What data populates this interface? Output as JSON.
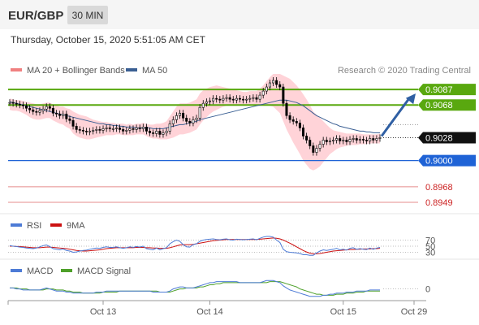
{
  "header": {
    "symbol": "EUR/GBP",
    "timeframe": "30 MIN",
    "timestamp": "Thursday, October 15, 2020 5:51:05 AM CET"
  },
  "colors": {
    "candle_up": "#ffffff",
    "candle_down": "#000000",
    "bollinger_fill": "#ffd3d8",
    "ma20": "#f08080",
    "ma50": "#3a5f93",
    "resistance": "#59a80f",
    "support": "#1f63d6",
    "minor_line": "#e58c8c",
    "last_price_bg": "#111111",
    "arrow": "#2f5fa3",
    "rsi_line": "#4d7bd6",
    "rsi_ma": "#cc1111",
    "macd_line": "#4d7bd6",
    "macd_signal": "#4ea02a"
  },
  "chart_data": [
    {
      "type": "candlestick",
      "legend": [
        {
          "name": "MA 20 + Bollinger Bands",
          "swatch": "ma20"
        },
        {
          "name": "MA 50",
          "swatch": "ma50"
        }
      ],
      "credit": "Research © 2020 Trading Central",
      "x_tick_labels": [
        "Oct 13",
        "Oct 14",
        "Oct 15",
        "Oct 29"
      ],
      "ylim": [
        0.894,
        0.91
      ],
      "last_price": 0.9028,
      "levels": [
        {
          "value": 0.9087,
          "label": "0.9087",
          "kind": "resistance"
        },
        {
          "value": 0.9068,
          "label": "0.9068",
          "kind": "resistance"
        },
        {
          "value": 0.9,
          "label": "0.9000",
          "kind": "support"
        },
        {
          "value": 0.8968,
          "label": "0.8968",
          "kind": "minor"
        },
        {
          "value": 0.8949,
          "label": "0.8949",
          "kind": "minor"
        }
      ],
      "last_price_label": "0.9028",
      "forecast_arrow": {
        "from": 0.9028,
        "to": 0.9082
      },
      "close": [
        0.9071,
        0.907,
        0.9069,
        0.9068,
        0.9067,
        0.9064,
        0.9062,
        0.906,
        0.9059,
        0.9061,
        0.9063,
        0.9066,
        0.9064,
        0.9058,
        0.9057,
        0.9055,
        0.9057,
        0.9051,
        0.9049,
        0.9042,
        0.9038,
        0.9037,
        0.9036,
        0.9035,
        0.9036,
        0.9037,
        0.9038,
        0.9037,
        0.9039,
        0.904,
        0.9039,
        0.9039,
        0.904,
        0.9038,
        0.9036,
        0.9037,
        0.9039,
        0.9038,
        0.904,
        0.9039,
        0.9041,
        0.9036,
        0.9034,
        0.9033,
        0.9036,
        0.9032,
        0.9034,
        0.9036,
        0.9045,
        0.905,
        0.9055,
        0.9058,
        0.9052,
        0.9048,
        0.9046,
        0.905,
        0.9052,
        0.9065,
        0.907,
        0.9072,
        0.9073,
        0.9076,
        0.9075,
        0.9074,
        0.9076,
        0.9077,
        0.9075,
        0.9074,
        0.9076,
        0.9075,
        0.9074,
        0.9075,
        0.9076,
        0.9077,
        0.9075,
        0.908,
        0.9085,
        0.909,
        0.9095,
        0.9098,
        0.9093,
        0.909,
        0.907,
        0.9055,
        0.905,
        0.9048,
        0.9046,
        0.904,
        0.903,
        0.9025,
        0.9018,
        0.901,
        0.9015,
        0.902,
        0.9025,
        0.9023,
        0.9024,
        0.9025,
        0.9027,
        0.9024,
        0.9025,
        0.9023,
        0.9026,
        0.9027,
        0.9025,
        0.9026,
        0.9025,
        0.9024,
        0.9027,
        0.9025,
        0.9027,
        0.9028
      ],
      "bb_upper": [
        0.9076,
        0.9075,
        0.9074,
        0.9074,
        0.9073,
        0.9072,
        0.9071,
        0.907,
        0.9069,
        0.9069,
        0.907,
        0.9071,
        0.9071,
        0.9069,
        0.9068,
        0.9066,
        0.9066,
        0.9064,
        0.9063,
        0.906,
        0.9058,
        0.9056,
        0.9055,
        0.9054,
        0.9052,
        0.905,
        0.9049,
        0.9048,
        0.9047,
        0.9047,
        0.9046,
        0.9046,
        0.9045,
        0.9045,
        0.9045,
        0.9044,
        0.9045,
        0.9044,
        0.9045,
        0.9045,
        0.9046,
        0.9045,
        0.9044,
        0.9044,
        0.9045,
        0.9045,
        0.9046,
        0.9048,
        0.9054,
        0.906,
        0.9066,
        0.907,
        0.907,
        0.907,
        0.9071,
        0.9073,
        0.9075,
        0.9082,
        0.9086,
        0.9088,
        0.909,
        0.9091,
        0.9092,
        0.9091,
        0.909,
        0.9089,
        0.9088,
        0.9087,
        0.9086,
        0.9085,
        0.9084,
        0.9084,
        0.9085,
        0.9085,
        0.9085,
        0.9088,
        0.9092,
        0.9097,
        0.9102,
        0.9106,
        0.9106,
        0.9106,
        0.9104,
        0.9102,
        0.91,
        0.9096,
        0.9092,
        0.9087,
        0.9081,
        0.9075,
        0.9068,
        0.906,
        0.9056,
        0.9052,
        0.9048,
        0.9044,
        0.904,
        0.9037,
        0.9036,
        0.9035,
        0.9034,
        0.9033,
        0.9033,
        0.9033,
        0.9033,
        0.9033,
        0.9032,
        0.9032,
        0.9032,
        0.9032,
        0.9032,
        0.9033
      ],
      "bb_lower": [
        0.9062,
        0.9061,
        0.9061,
        0.906,
        0.9058,
        0.9056,
        0.9053,
        0.9051,
        0.905,
        0.905,
        0.9051,
        0.9052,
        0.9052,
        0.9049,
        0.9047,
        0.9045,
        0.9044,
        0.9041,
        0.9039,
        0.9033,
        0.903,
        0.9028,
        0.9027,
        0.9026,
        0.9026,
        0.9027,
        0.9028,
        0.9029,
        0.903,
        0.9031,
        0.9031,
        0.9031,
        0.9032,
        0.9032,
        0.9031,
        0.9031,
        0.9031,
        0.9031,
        0.9032,
        0.9032,
        0.9032,
        0.903,
        0.9028,
        0.9027,
        0.9027,
        0.9026,
        0.9026,
        0.9026,
        0.9027,
        0.9028,
        0.903,
        0.9032,
        0.9032,
        0.9033,
        0.9034,
        0.9036,
        0.9038,
        0.9044,
        0.9049,
        0.9053,
        0.9057,
        0.906,
        0.9062,
        0.9064,
        0.9066,
        0.9067,
        0.9067,
        0.9067,
        0.9067,
        0.9067,
        0.9067,
        0.9067,
        0.9067,
        0.9068,
        0.9068,
        0.9068,
        0.9069,
        0.9068,
        0.9067,
        0.9066,
        0.9062,
        0.9058,
        0.9048,
        0.9038,
        0.903,
        0.9022,
        0.9015,
        0.9008,
        0.9,
        0.8995,
        0.899,
        0.8988,
        0.899,
        0.8993,
        0.8998,
        0.9003,
        0.9008,
        0.9011,
        0.9014,
        0.9016,
        0.9017,
        0.9018,
        0.9019,
        0.9019,
        0.9019,
        0.902,
        0.902,
        0.902,
        0.9021,
        0.9021,
        0.9021,
        0.9021
      ],
      "ma50": [
        0.9072,
        0.9071,
        0.907,
        0.9069,
        0.9068,
        0.9067,
        0.9066,
        0.9065,
        0.9064,
        0.9063,
        0.9062,
        0.9061,
        0.906,
        0.9059,
        0.9058,
        0.9057,
        0.9056,
        0.9055,
        0.9054,
        0.9053,
        0.9052,
        0.9051,
        0.905,
        0.9049,
        0.9048,
        0.9047,
        0.9046,
        0.9045,
        0.9045,
        0.9044,
        0.9044,
        0.9043,
        0.9043,
        0.9042,
        0.9042,
        0.9041,
        0.9041,
        0.9041,
        0.904,
        0.904,
        0.904,
        0.904,
        0.904,
        0.9039,
        0.9039,
        0.9039,
        0.9039,
        0.904,
        0.9041,
        0.9042,
        0.9043,
        0.9044,
        0.9044,
        0.9045,
        0.9046,
        0.9047,
        0.9048,
        0.905,
        0.9051,
        0.9052,
        0.9053,
        0.9054,
        0.9055,
        0.9056,
        0.9057,
        0.9058,
        0.9059,
        0.906,
        0.9061,
        0.9062,
        0.9063,
        0.9064,
        0.9065,
        0.9066,
        0.9067,
        0.9068,
        0.9069,
        0.907,
        0.9071,
        0.9072,
        0.9073,
        0.9074,
        0.9074,
        0.9074,
        0.9073,
        0.9072,
        0.9071,
        0.9069,
        0.9067,
        0.9064,
        0.9061,
        0.9058,
        0.9055,
        0.9053,
        0.9051,
        0.9049,
        0.9047,
        0.9045,
        0.9044,
        0.9042,
        0.9041,
        0.904,
        0.9039,
        0.9038,
        0.9037,
        0.9036,
        0.9036,
        0.9035,
        0.9035,
        0.9034,
        0.9034,
        0.9034
      ]
    },
    {
      "type": "line",
      "legend": [
        {
          "name": "RSI",
          "swatch": "rsi_line"
        },
        {
          "name": "9MA",
          "swatch": "rsi_ma"
        }
      ],
      "ylim": [
        10,
        90
      ],
      "y_tick_labels": [
        {
          "value": 70,
          "label": "70"
        },
        {
          "value": 50,
          "label": "50"
        },
        {
          "value": 30,
          "label": "30"
        }
      ],
      "rsi": [
        52,
        50,
        49,
        47,
        46,
        44,
        43,
        42,
        44,
        48,
        52,
        54,
        49,
        42,
        40,
        38,
        41,
        36,
        34,
        30,
        31,
        34,
        36,
        37,
        40,
        42,
        44,
        43,
        46,
        48,
        46,
        46,
        48,
        45,
        43,
        45,
        48,
        46,
        49,
        47,
        50,
        42,
        40,
        38,
        44,
        38,
        42,
        45,
        58,
        65,
        70,
        66,
        55,
        48,
        47,
        55,
        58,
        66,
        70,
        72,
        73,
        74,
        72,
        71,
        73,
        74,
        71,
        70,
        73,
        72,
        71,
        72,
        73,
        74,
        71,
        76,
        80,
        82,
        82,
        80,
        70,
        62,
        40,
        32,
        30,
        29,
        28,
        26,
        22,
        22,
        20,
        20,
        28,
        34,
        38,
        36,
        38,
        40,
        43,
        38,
        40,
        37,
        43,
        45,
        40,
        42,
        40,
        39,
        44,
        40,
        44,
        46
      ],
      "rsi_ma": [
        50,
        50,
        49,
        49,
        48,
        47,
        46,
        45,
        45,
        45,
        46,
        47,
        47,
        46,
        45,
        44,
        43,
        42,
        40,
        38,
        36,
        35,
        34,
        34,
        35,
        36,
        37,
        38,
        40,
        42,
        43,
        44,
        45,
        45,
        45,
        45,
        45,
        45,
        46,
        46,
        46,
        45,
        45,
        44,
        44,
        43,
        43,
        43,
        45,
        48,
        51,
        54,
        55,
        55,
        55,
        56,
        58,
        60,
        62,
        64,
        66,
        68,
        69,
        70,
        71,
        72,
        72,
        72,
        72,
        72,
        72,
        72,
        72,
        72,
        72,
        73,
        74,
        75,
        76,
        77,
        76,
        74,
        70,
        65,
        60,
        54,
        48,
        42,
        36,
        31,
        27,
        25,
        25,
        26,
        28,
        30,
        32,
        34,
        35,
        36,
        37,
        38,
        39,
        39,
        40,
        40,
        41,
        41,
        41,
        42,
        42,
        43
      ]
    },
    {
      "type": "line",
      "legend": [
        {
          "name": "MACD",
          "swatch": "macd_line"
        },
        {
          "name": "MACD Signal",
          "swatch": "macd_signal"
        }
      ],
      "y_tick_labels": [
        {
          "value": 0,
          "label": "0"
        }
      ],
      "ylim": [
        -0.0008,
        0.0009
      ],
      "macd": [
        0.0001,
        0.0001,
        0.0,
        0.0,
        -0.0001,
        -0.0001,
        -0.0001,
        -0.0001,
        -0.0001,
        -0.0001,
        0.0,
        0.0001,
        0.0,
        -0.0001,
        -0.0002,
        -0.0002,
        -0.0002,
        -0.0003,
        -0.0003,
        -0.0004,
        -0.0004,
        -0.0004,
        -0.0004,
        -0.0004,
        -0.0004,
        -0.0004,
        -0.0003,
        -0.0003,
        -0.0003,
        -0.0002,
        -0.0002,
        -0.0002,
        -0.0002,
        -0.0002,
        -0.0002,
        -0.0002,
        -0.0002,
        -0.0002,
        -0.0002,
        -0.0002,
        -0.0002,
        -0.0002,
        -0.0002,
        -0.0003,
        -0.0003,
        -0.0003,
        -0.0003,
        -0.0003,
        -0.0002,
        0.0,
        0.0001,
        0.0002,
        0.0002,
        0.0001,
        0.0001,
        0.0001,
        0.0002,
        0.0003,
        0.0004,
        0.0005,
        0.0006,
        0.0006,
        0.0007,
        0.0007,
        0.0007,
        0.0007,
        0.0007,
        0.0007,
        0.0007,
        0.0006,
        0.0006,
        0.0006,
        0.0006,
        0.0006,
        0.0006,
        0.0006,
        0.0007,
        0.0008,
        0.0008,
        0.0008,
        0.0007,
        0.0006,
        0.0003,
        0.0001,
        -0.0001,
        -0.0002,
        -0.0003,
        -0.0004,
        -0.0005,
        -0.0006,
        -0.0007,
        -0.0007,
        -0.0007,
        -0.0007,
        -0.0006,
        -0.0006,
        -0.0005,
        -0.0005,
        -0.0004,
        -0.0004,
        -0.0004,
        -0.0003,
        -0.0003,
        -0.0003,
        -0.0002,
        -0.0002,
        -0.0002,
        -0.0002,
        -0.0001,
        -0.0001,
        -0.0001,
        -0.0001
      ],
      "signal": [
        0.0001,
        0.0001,
        0.0001,
        0.0,
        0.0,
        0.0,
        -0.0001,
        -0.0001,
        -0.0001,
        -0.0001,
        -0.0001,
        0.0,
        0.0,
        0.0,
        -0.0001,
        -0.0001,
        -0.0001,
        -0.0002,
        -0.0002,
        -0.0003,
        -0.0003,
        -0.0003,
        -0.0004,
        -0.0004,
        -0.0004,
        -0.0004,
        -0.0004,
        -0.0004,
        -0.0003,
        -0.0003,
        -0.0003,
        -0.0003,
        -0.0003,
        -0.0002,
        -0.0002,
        -0.0002,
        -0.0002,
        -0.0002,
        -0.0002,
        -0.0002,
        -0.0002,
        -0.0002,
        -0.0002,
        -0.0002,
        -0.0002,
        -0.0003,
        -0.0003,
        -0.0003,
        -0.0003,
        -0.0002,
        -0.0001,
        0.0,
        0.0,
        0.0001,
        0.0001,
        0.0001,
        0.0001,
        0.0002,
        0.0002,
        0.0003,
        0.0004,
        0.0004,
        0.0005,
        0.0005,
        0.0006,
        0.0006,
        0.0006,
        0.0006,
        0.0006,
        0.0006,
        0.0006,
        0.0006,
        0.0006,
        0.0006,
        0.0006,
        0.0006,
        0.0006,
        0.0006,
        0.0007,
        0.0007,
        0.0007,
        0.0007,
        0.0006,
        0.0005,
        0.0004,
        0.0003,
        0.0002,
        0.0,
        -0.0001,
        -0.0002,
        -0.0003,
        -0.0004,
        -0.0005,
        -0.0005,
        -0.0006,
        -0.0006,
        -0.0006,
        -0.0006,
        -0.0005,
        -0.0005,
        -0.0005,
        -0.0004,
        -0.0004,
        -0.0004,
        -0.0003,
        -0.0003,
        -0.0003,
        -0.0002,
        -0.0002,
        -0.0002,
        -0.0002,
        -0.0002
      ]
    }
  ]
}
